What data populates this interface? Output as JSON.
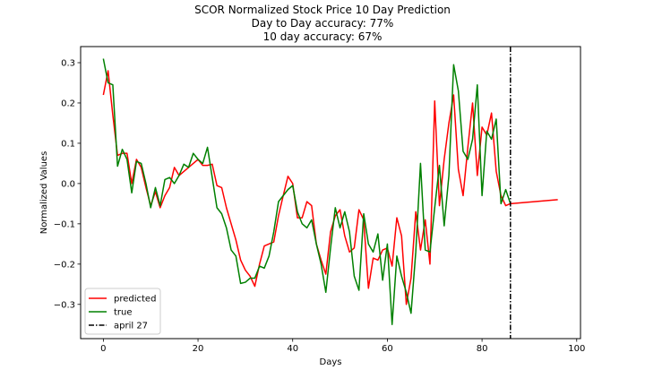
{
  "chart_data": {
    "type": "line",
    "title_lines": [
      "SCOR Normalized Stock Price 10 Day Prediction",
      "Day to Day accuracy: 77%",
      "10 day accuracy: 67%"
    ],
    "xlabel": "Days",
    "ylabel": "Normalized Values",
    "xlim": [
      -4.8,
      100.8
    ],
    "ylim": [
      -0.385,
      0.34
    ],
    "xticks": [
      0,
      20,
      40,
      60,
      80,
      100
    ],
    "yticks": [
      -0.3,
      -0.2,
      -0.1,
      0.0,
      0.1,
      0.2,
      0.3
    ],
    "ytick_labels": [
      "−0.3",
      "−0.2",
      "−0.1",
      "0.0",
      "0.1",
      "0.2",
      "0.3"
    ],
    "grid": false,
    "legend_position": "lower-left",
    "series": [
      {
        "name": "predicted",
        "color": "#ff0000",
        "x": [
          0,
          1,
          2,
          3,
          4,
          5,
          6,
          7,
          8,
          9,
          10,
          11,
          12,
          13,
          14,
          15,
          16,
          17,
          18,
          19,
          20,
          21,
          22,
          23,
          24,
          25,
          26,
          27,
          28,
          29,
          30,
          31,
          32,
          33,
          34,
          35,
          36,
          37,
          38,
          39,
          40,
          41,
          42,
          43,
          44,
          45,
          46,
          47,
          48,
          49,
          50,
          51,
          52,
          53,
          54,
          55,
          56,
          57,
          58,
          59,
          60,
          61,
          62,
          63,
          64,
          65,
          66,
          67,
          68,
          69,
          70,
          71,
          72,
          73,
          74,
          75,
          76,
          77,
          78,
          79,
          80,
          81,
          82,
          83,
          84,
          85,
          86,
          96
        ],
        "y": [
          0.22,
          0.28,
          0.17,
          0.07,
          0.075,
          0.075,
          0.0,
          0.06,
          0.04,
          -0.01,
          -0.055,
          -0.02,
          -0.06,
          -0.03,
          -0.01,
          0.04,
          0.02,
          0.03,
          0.04,
          0.05,
          0.06,
          0.045,
          0.045,
          0.048,
          -0.005,
          -0.01,
          -0.06,
          -0.1,
          -0.14,
          -0.19,
          -0.215,
          -0.23,
          -0.255,
          -0.2,
          -0.155,
          -0.15,
          -0.145,
          -0.08,
          -0.03,
          0.018,
          0.0,
          -0.085,
          -0.085,
          -0.045,
          -0.055,
          -0.15,
          -0.19,
          -0.225,
          -0.12,
          -0.08,
          -0.065,
          -0.13,
          -0.17,
          -0.16,
          -0.065,
          -0.09,
          -0.26,
          -0.185,
          -0.19,
          -0.165,
          -0.16,
          -0.205,
          -0.085,
          -0.13,
          -0.3,
          -0.235,
          -0.07,
          -0.165,
          -0.09,
          -0.2,
          0.205,
          -0.055,
          0.06,
          0.15,
          0.22,
          0.035,
          -0.03,
          0.09,
          0.2,
          0.02,
          0.14,
          0.12,
          0.175,
          0.03,
          -0.03,
          -0.055,
          -0.05,
          -0.04
        ]
      },
      {
        "name": "true",
        "color": "#008000",
        "x": [
          0,
          1,
          2,
          3,
          4,
          5,
          6,
          7,
          8,
          9,
          10,
          11,
          12,
          13,
          14,
          15,
          16,
          17,
          18,
          19,
          20,
          21,
          22,
          23,
          24,
          25,
          26,
          27,
          28,
          29,
          30,
          31,
          32,
          33,
          34,
          35,
          36,
          37,
          38,
          39,
          40,
          41,
          42,
          43,
          44,
          45,
          46,
          47,
          48,
          49,
          50,
          51,
          52,
          53,
          54,
          55,
          56,
          57,
          58,
          59,
          60,
          61,
          62,
          63,
          64,
          65,
          66,
          67,
          68,
          69,
          70,
          71,
          72,
          73,
          74,
          75,
          76,
          77,
          78,
          79,
          80,
          81,
          82,
          83,
          84,
          85,
          86
        ],
        "y": [
          0.31,
          0.25,
          0.245,
          0.043,
          0.085,
          0.06,
          -0.023,
          0.055,
          0.05,
          0.0,
          -0.06,
          -0.01,
          -0.055,
          0.01,
          0.015,
          0.0,
          0.02,
          0.048,
          0.04,
          0.075,
          0.06,
          0.05,
          0.09,
          0.015,
          -0.06,
          -0.075,
          -0.11,
          -0.165,
          -0.18,
          -0.248,
          -0.245,
          -0.235,
          -0.235,
          -0.205,
          -0.21,
          -0.18,
          -0.12,
          -0.045,
          -0.03,
          -0.015,
          -0.005,
          -0.07,
          -0.1,
          -0.11,
          -0.09,
          -0.15,
          -0.2,
          -0.27,
          -0.16,
          -0.06,
          -0.11,
          -0.07,
          -0.12,
          -0.23,
          -0.265,
          -0.075,
          -0.15,
          -0.17,
          -0.125,
          -0.24,
          -0.15,
          -0.35,
          -0.18,
          -0.23,
          -0.27,
          -0.322,
          -0.17,
          0.05,
          -0.165,
          -0.17,
          -0.06,
          0.045,
          -0.105,
          0.02,
          0.295,
          0.23,
          0.08,
          0.06,
          0.11,
          0.245,
          -0.03,
          0.13,
          0.11,
          0.16,
          -0.05,
          -0.015,
          -0.05
        ]
      }
    ],
    "vline": {
      "name": "april 27",
      "x": 86,
      "color": "#000000",
      "style": "dash-dot"
    }
  }
}
